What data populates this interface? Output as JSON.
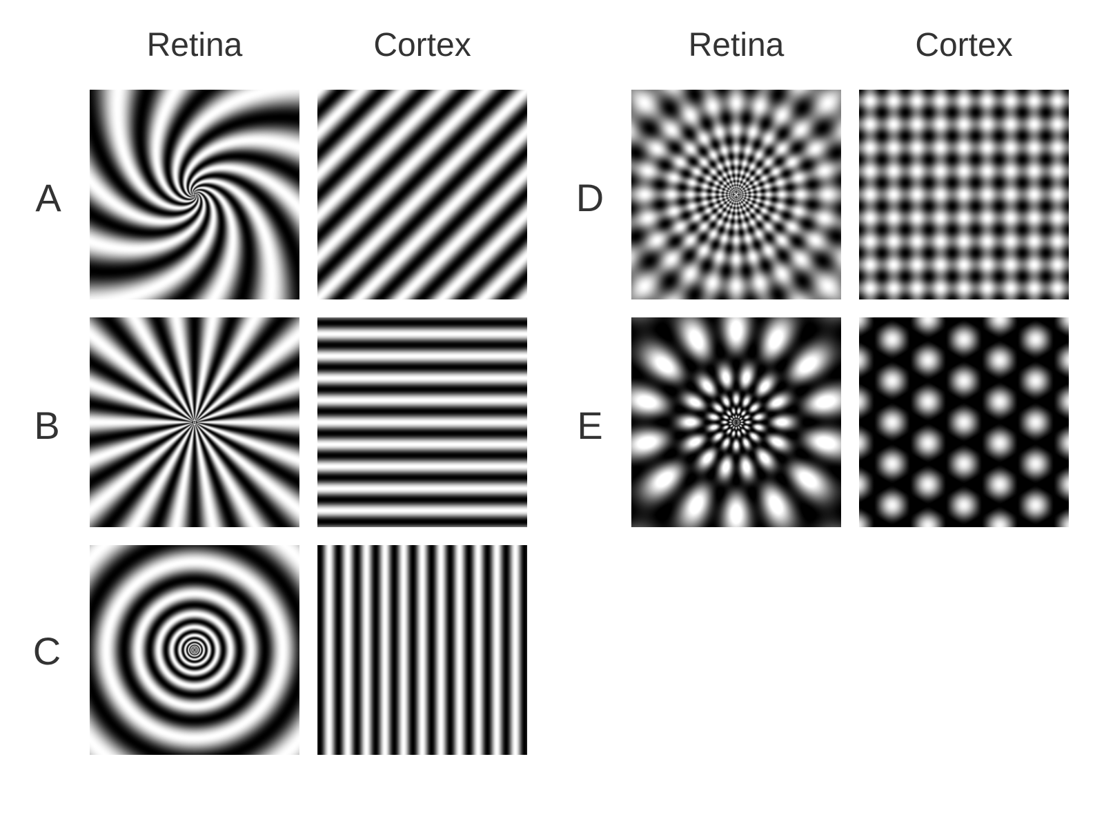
{
  "left_group": {
    "headers": {
      "retina": "Retina",
      "cortex": "Cortex"
    },
    "rows": [
      {
        "label": "A",
        "retina_pattern": "log-spiral",
        "cortex_pattern": "diagonal-stripes"
      },
      {
        "label": "B",
        "retina_pattern": "radial-rays",
        "cortex_pattern": "horizontal-stripes"
      },
      {
        "label": "C",
        "retina_pattern": "concentric-rings",
        "cortex_pattern": "vertical-stripes"
      }
    ]
  },
  "right_group": {
    "headers": {
      "retina": "Retina",
      "cortex": "Cortex"
    },
    "rows": [
      {
        "label": "D",
        "retina_pattern": "log-polar-checkerboard",
        "cortex_pattern": "checkerboard"
      },
      {
        "label": "E",
        "retina_pattern": "log-polar-hexagonal-spots",
        "cortex_pattern": "hexagonal-spots"
      }
    ]
  },
  "colors": {
    "dark": "#000000",
    "light": "#ffffff",
    "text": "#333333"
  }
}
